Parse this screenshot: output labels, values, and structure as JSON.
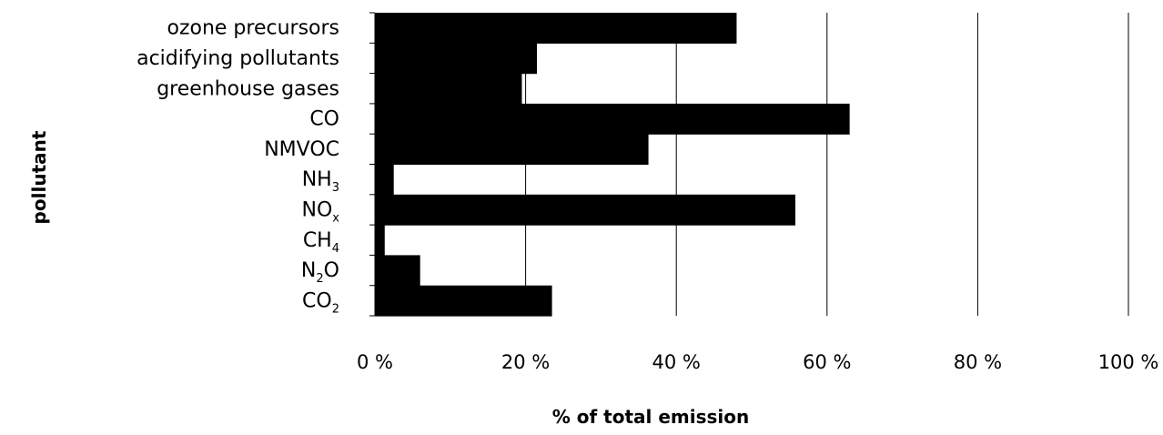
{
  "chart_data": {
    "type": "bar",
    "orientation": "horizontal",
    "stacked": true,
    "categories": [
      {
        "name": "ozone precursors",
        "base": "ozone precursors",
        "sub": ""
      },
      {
        "name": "acidifying pollutants",
        "base": "acidifying pollutants",
        "sub": ""
      },
      {
        "name": "greenhouse gases",
        "base": "greenhouse gases",
        "sub": ""
      },
      {
        "name": "CO",
        "base": "CO",
        "sub": ""
      },
      {
        "name": "NMVOC",
        "base": "NMVOC",
        "sub": ""
      },
      {
        "name": "NH3",
        "base": "NH",
        "sub": "3"
      },
      {
        "name": "NOx",
        "base": "NO",
        "sub": "x"
      },
      {
        "name": "CH4",
        "base": "CH",
        "sub": "4"
      },
      {
        "name": "N2O",
        "base": "N",
        "sub": "2",
        "tail": "O"
      },
      {
        "name": "CO2",
        "base": "CO",
        "sub": "2"
      }
    ],
    "values": [
      48,
      21.5,
      19.5,
      63,
      36.3,
      2.5,
      55.8,
      1.3,
      6,
      23.5
    ],
    "xlim": [
      0,
      100
    ],
    "xticks": [
      "0 %",
      "20 %",
      "40 %",
      "60 %",
      "80 %",
      "100 %"
    ],
    "xtick_values": [
      0,
      20,
      40,
      60,
      80,
      100
    ],
    "xlabel": "% of total emission",
    "ylabel": "pollutant",
    "grid": "vertical",
    "bar_color": "#000000",
    "grid_color": "#000000"
  }
}
